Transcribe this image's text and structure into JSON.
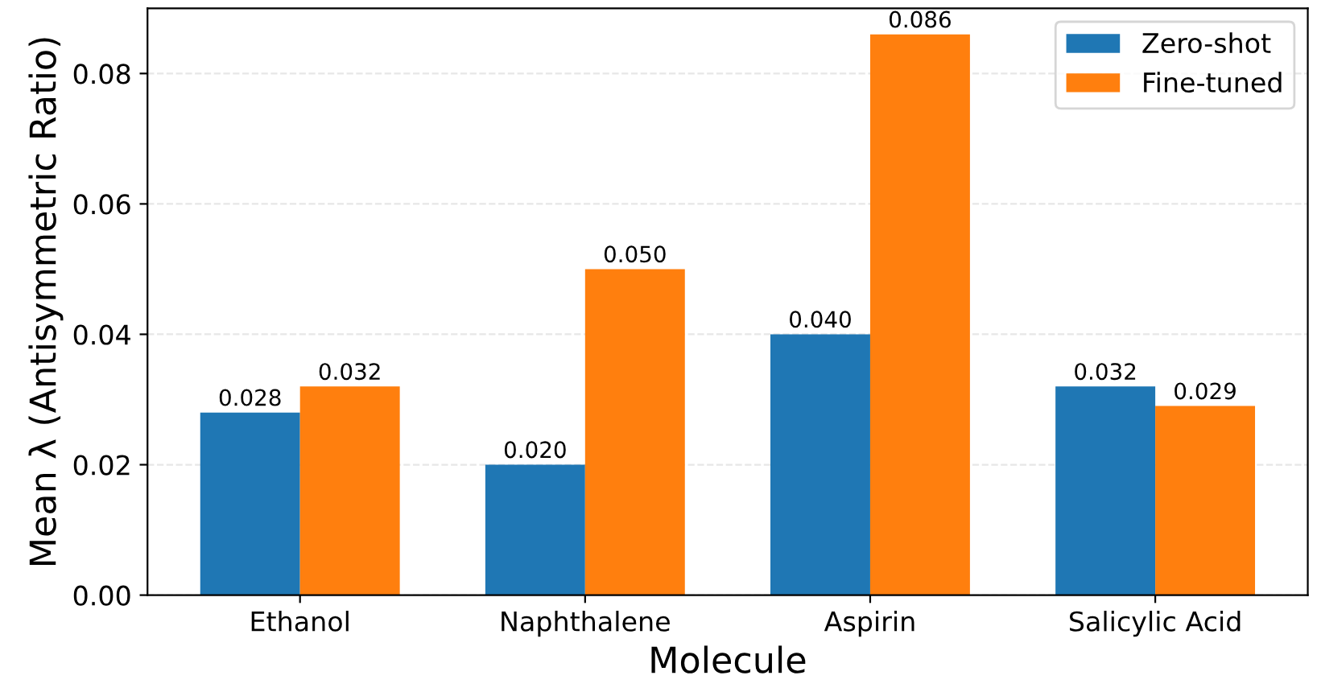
{
  "chart_data": {
    "type": "bar",
    "categories": [
      "Ethanol",
      "Naphthalene",
      "Aspirin",
      "Salicylic Acid"
    ],
    "series": [
      {
        "name": "Zero-shot",
        "color": "#1f77b4",
        "values": [
          0.028,
          0.02,
          0.04,
          0.032
        ],
        "value_labels": [
          "0.028",
          "0.020",
          "0.040",
          "0.032"
        ]
      },
      {
        "name": "Fine-tuned",
        "color": "#ff7f0e",
        "values": [
          0.032,
          0.05,
          0.086,
          0.029
        ],
        "value_labels": [
          "0.032",
          "0.050",
          "0.086",
          "0.029"
        ]
      }
    ],
    "xlabel": "Molecule",
    "ylabel": "Mean λ (Antisymmetric Ratio)",
    "ylim": [
      0,
      0.09
    ],
    "yticks": [
      {
        "value": 0,
        "label": "0.00"
      },
      {
        "value": 0.02,
        "label": "0.02"
      },
      {
        "value": 0.04,
        "label": "0.04"
      },
      {
        "value": 0.06,
        "label": "0.06"
      },
      {
        "value": 0.08,
        "label": "0.08"
      }
    ],
    "grid": "y",
    "legend": "top right"
  }
}
